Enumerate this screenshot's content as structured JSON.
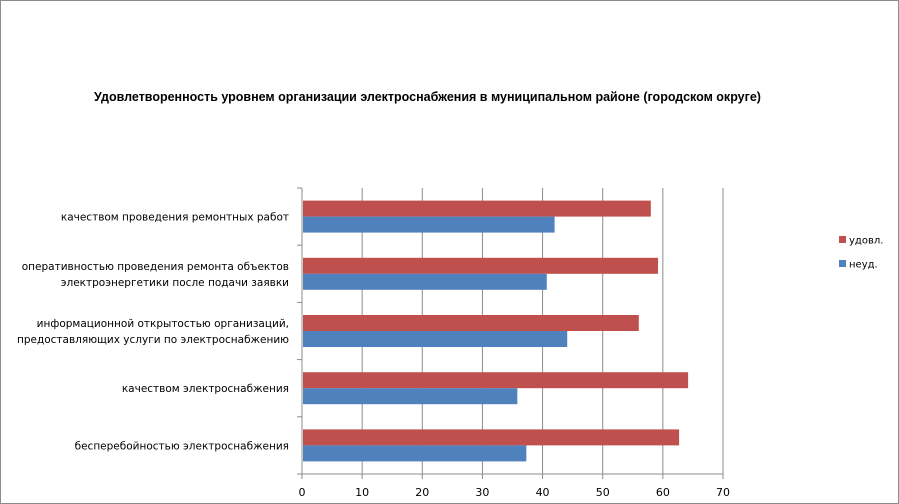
{
  "chart_data": {
    "type": "bar",
    "orientation": "horizontal",
    "title": "Удовлетворенность уровнем организации электроснабжения в муниципальном районе (городском округе)",
    "categories": [
      [
        "качеством проведения ремонтных работ"
      ],
      [
        "оперативностью проведения ремонта объектов",
        "электроэнергетики после подачи заявки"
      ],
      [
        "информационной открытостью организаций,",
        "предоставляющих услуги по электроснабжению"
      ],
      [
        "качеством электроснабжения"
      ],
      [
        "бесперебойностью электроснабжения"
      ]
    ],
    "series": [
      {
        "name": "удовл.",
        "color": "#c0504d",
        "values": [
          58,
          59.2,
          56,
          64.2,
          62.7
        ]
      },
      {
        "name": "неуд.",
        "color": "#4f81bd",
        "values": [
          42,
          40.7,
          44.1,
          35.8,
          37.3
        ]
      }
    ],
    "xlim": [
      0,
      70
    ],
    "xticks": [
      "0",
      "10",
      "20",
      "30",
      "40",
      "50",
      "60",
      "70"
    ],
    "grid": true,
    "legend_position": "right"
  }
}
